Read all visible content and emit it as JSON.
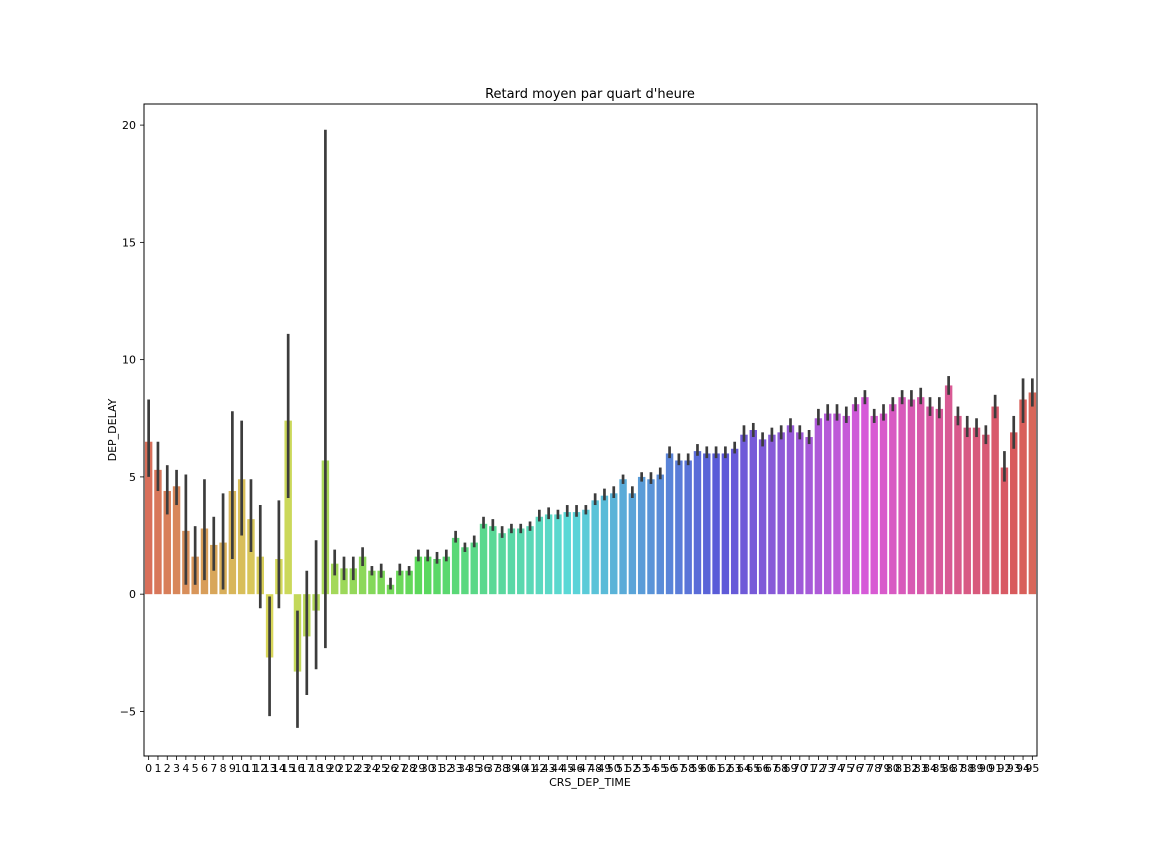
{
  "chart_data": {
    "type": "bar",
    "title": "Retard moyen par quart d'heure",
    "xlabel": "CRS_DEP_TIME",
    "ylabel": "DEP_DELAY",
    "ylim": [
      -6.9,
      20.9
    ],
    "yticks": [
      -5,
      0,
      5,
      10,
      15,
      20
    ],
    "ytick_labels": [
      "−5",
      "0",
      "5",
      "10",
      "15",
      "20"
    ],
    "grid": false,
    "categories": [
      "0",
      "1",
      "2",
      "3",
      "4",
      "5",
      "6",
      "7",
      "8",
      "9",
      "10",
      "11",
      "12",
      "13",
      "14",
      "15",
      "16",
      "17",
      "18",
      "19",
      "20",
      "21",
      "22",
      "23",
      "24",
      "25",
      "26",
      "27",
      "28",
      "29",
      "30",
      "31",
      "32",
      "33",
      "34",
      "35",
      "36",
      "37",
      "38",
      "39",
      "40",
      "41",
      "42",
      "43",
      "44",
      "45",
      "46",
      "47",
      "48",
      "49",
      "50",
      "51",
      "52",
      "53",
      "54",
      "55",
      "56",
      "57",
      "58",
      "59",
      "60",
      "61",
      "62",
      "63",
      "64",
      "65",
      "66",
      "67",
      "68",
      "69",
      "70",
      "71",
      "72",
      "73",
      "74",
      "75",
      "76",
      "77",
      "78",
      "79",
      "80",
      "81",
      "82",
      "83",
      "84",
      "85",
      "86",
      "87",
      "88",
      "89",
      "90",
      "91",
      "92",
      "93",
      "94",
      "95"
    ],
    "values": [
      6.5,
      5.3,
      4.4,
      4.6,
      2.7,
      1.6,
      2.8,
      2.1,
      2.2,
      4.4,
      4.9,
      3.2,
      1.6,
      -2.7,
      1.5,
      7.4,
      -3.3,
      -1.8,
      -0.7,
      5.7,
      1.3,
      1.1,
      1.1,
      1.6,
      1.0,
      1.0,
      0.4,
      1.0,
      1.0,
      1.6,
      1.6,
      1.5,
      1.6,
      2.4,
      2.0,
      2.2,
      3.0,
      2.9,
      2.6,
      2.8,
      2.8,
      2.9,
      3.3,
      3.4,
      3.4,
      3.5,
      3.5,
      3.6,
      4.0,
      4.2,
      4.3,
      4.9,
      4.3,
      5.0,
      4.9,
      5.1,
      6.0,
      5.7,
      5.7,
      6.1,
      6.0,
      6.0,
      6.0,
      6.2,
      6.8,
      7.0,
      6.6,
      6.8,
      6.9,
      7.2,
      6.9,
      6.7,
      7.5,
      7.7,
      7.7,
      7.6,
      8.1,
      8.4,
      7.6,
      7.7,
      8.1,
      8.4,
      8.3,
      8.4,
      8.0,
      7.9,
      8.9,
      7.6,
      7.1,
      7.1,
      6.8,
      8.0,
      5.4,
      6.9,
      8.3,
      8.6
    ],
    "ci_low": [
      5.0,
      4.4,
      3.4,
      3.8,
      0.4,
      0.4,
      0.6,
      1.0,
      0.2,
      1.5,
      2.5,
      1.8,
      -0.6,
      -5.2,
      -0.6,
      4.1,
      -5.7,
      -4.3,
      -3.2,
      -2.3,
      0.8,
      0.6,
      0.6,
      1.2,
      0.8,
      0.7,
      0.2,
      0.8,
      0.8,
      1.4,
      1.4,
      1.3,
      1.4,
      2.2,
      1.8,
      2.0,
      2.8,
      2.7,
      2.4,
      2.6,
      2.6,
      2.7,
      3.1,
      3.2,
      3.2,
      3.3,
      3.3,
      3.4,
      3.8,
      4.0,
      4.1,
      4.7,
      4.1,
      4.8,
      4.7,
      4.9,
      5.8,
      5.5,
      5.5,
      5.9,
      5.8,
      5.8,
      5.8,
      6.0,
      6.5,
      6.7,
      6.3,
      6.5,
      6.6,
      6.9,
      6.6,
      6.4,
      7.2,
      7.4,
      7.4,
      7.3,
      7.8,
      8.1,
      7.3,
      7.4,
      7.8,
      8.1,
      8.0,
      8.1,
      7.6,
      7.5,
      8.5,
      7.2,
      6.7,
      6.7,
      6.4,
      7.5,
      4.8,
      6.2,
      7.3,
      8.0
    ],
    "ci_high": [
      8.3,
      6.5,
      5.5,
      5.3,
      5.1,
      2.9,
      4.9,
      3.3,
      4.3,
      7.8,
      7.4,
      4.9,
      3.8,
      -0.1,
      4.0,
      11.1,
      -0.7,
      1.0,
      2.3,
      19.8,
      1.9,
      1.6,
      1.6,
      2.0,
      1.2,
      1.3,
      0.7,
      1.3,
      1.2,
      1.9,
      1.9,
      1.8,
      1.9,
      2.7,
      2.2,
      2.5,
      3.3,
      3.2,
      2.9,
      3.0,
      3.0,
      3.1,
      3.6,
      3.7,
      3.6,
      3.8,
      3.8,
      3.8,
      4.3,
      4.5,
      4.6,
      5.1,
      4.6,
      5.2,
      5.2,
      5.4,
      6.3,
      6.0,
      6.0,
      6.4,
      6.3,
      6.3,
      6.3,
      6.5,
      7.2,
      7.3,
      6.9,
      7.1,
      7.2,
      7.5,
      7.2,
      7.0,
      7.9,
      8.1,
      8.1,
      8.0,
      8.4,
      8.7,
      7.9,
      8.1,
      8.4,
      8.7,
      8.7,
      8.8,
      8.4,
      8.4,
      9.3,
      8.0,
      7.6,
      7.5,
      7.2,
      8.5,
      6.1,
      7.6,
      9.2,
      9.2
    ]
  }
}
